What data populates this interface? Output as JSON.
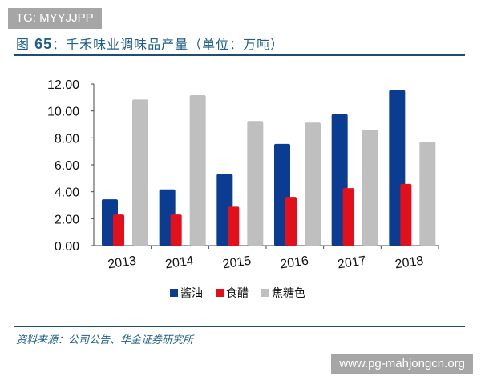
{
  "watermark_top": "TG: MYYJJPP",
  "title_prefix": "图",
  "title_num": "65",
  "title_text": "：千禾味业调味品产量（单位：万吨）",
  "source": "资料来源：公司公告、华金证券研究所",
  "watermark_bottom": "www.pg-mahjongcn.org",
  "chart_data": {
    "type": "bar",
    "title": "千禾味业调味品产量（单位：万吨）",
    "categories": [
      "2013",
      "2014",
      "2015",
      "2016",
      "2017",
      "2018"
    ],
    "series": [
      {
        "name": "酱油",
        "color": "#0a3d91",
        "values": [
          3.44,
          4.17,
          5.32,
          7.55,
          9.76,
          11.54
        ]
      },
      {
        "name": "食醋",
        "color": "#e3101c",
        "values": [
          2.31,
          2.31,
          2.89,
          3.62,
          4.27,
          4.58
        ]
      },
      {
        "name": "焦糖色",
        "color": "#bfbfbf",
        "values": [
          10.85,
          11.17,
          9.25,
          9.13,
          8.58,
          7.71
        ]
      }
    ],
    "yticks": [
      "0.00",
      "2.00",
      "4.00",
      "6.00",
      "8.00",
      "10.00",
      "12.00"
    ],
    "ylim": [
      0,
      12
    ],
    "grid": false,
    "legend": "bottom"
  }
}
